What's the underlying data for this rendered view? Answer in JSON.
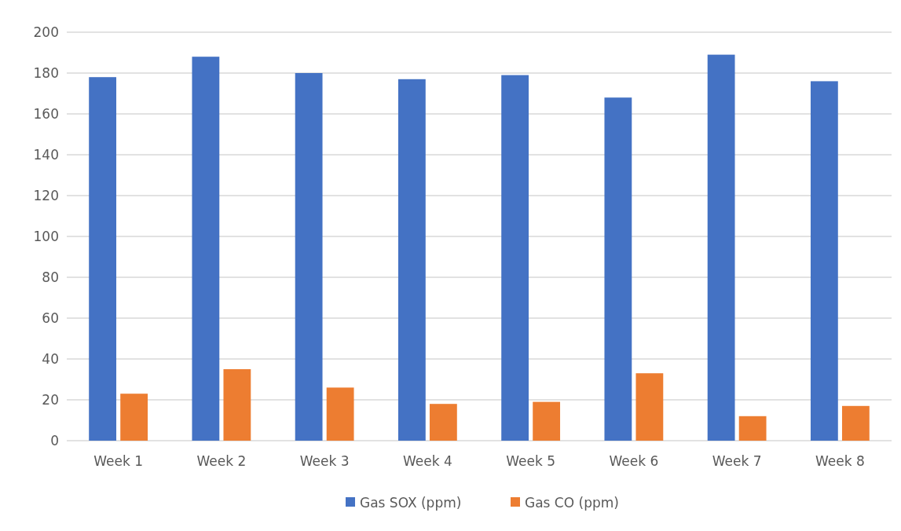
{
  "chart_data": {
    "type": "bar",
    "categories": [
      "Week 1",
      "Week 2",
      "Week 3",
      "Week 4",
      "Week 5",
      "Week 6",
      "Week 7",
      "Week 8"
    ],
    "series": [
      {
        "name": "Gas SOX (ppm)",
        "color": "#4472c4",
        "values": [
          178,
          188,
          180,
          177,
          179,
          168,
          189,
          176
        ]
      },
      {
        "name": "Gas CO (ppm)",
        "color": "#ed7d31",
        "values": [
          23,
          35,
          26,
          18,
          19,
          33,
          12,
          17
        ]
      }
    ],
    "ylim": [
      0,
      200
    ],
    "yticks": [
      0,
      20,
      40,
      60,
      80,
      100,
      120,
      140,
      160,
      180,
      200
    ],
    "grid": "y",
    "legend": "bottom"
  }
}
